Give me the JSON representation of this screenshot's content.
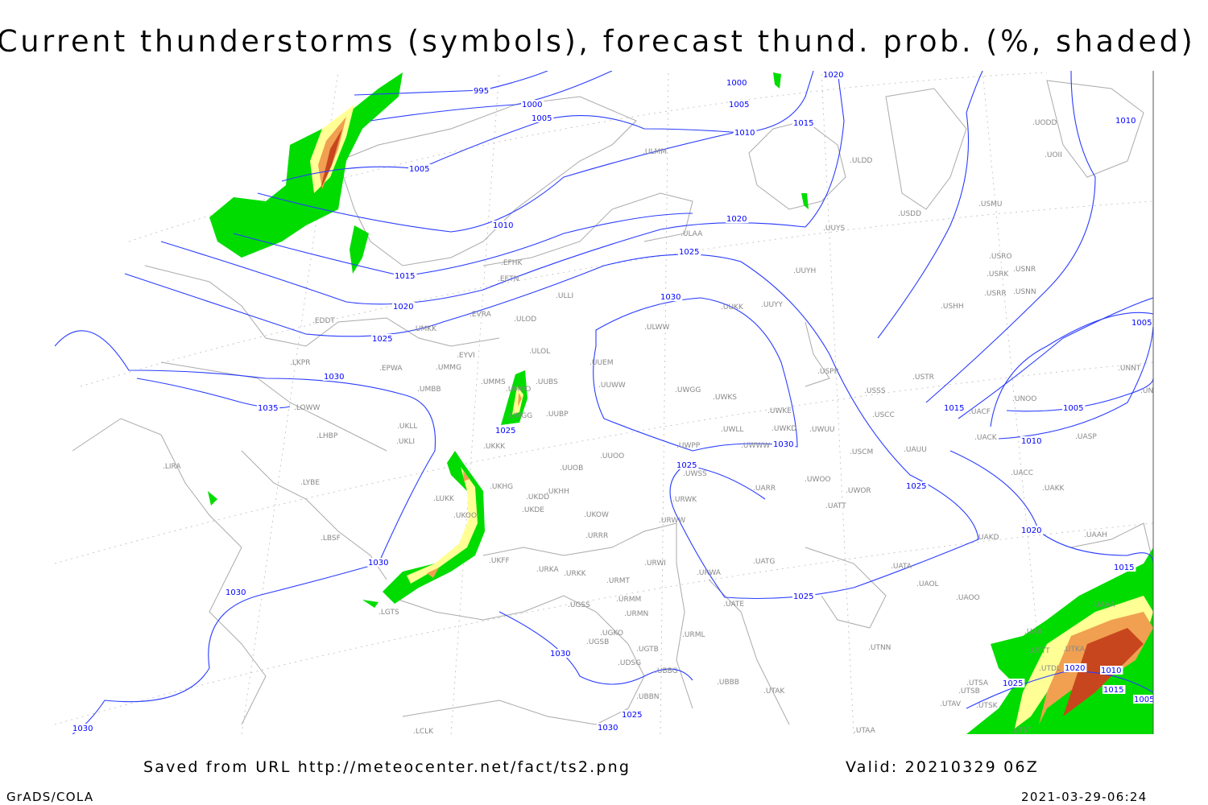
{
  "title": "Current thunderstorms (symbols), forecast thund. prob. (%, shaded)",
  "footer": {
    "source": "Saved from URL http://meteocenter.net/fact/ts2.png",
    "valid": "Valid: 20210329 06Z",
    "software": "GrADS/COLA",
    "timestamp": "2021-03-29-06:24"
  },
  "colors": {
    "isobar": "#2a3cff",
    "coast": "#aaaaaa",
    "prob_low": "#00dc00",
    "prob_mid": "#ffff96",
    "prob_high": "#f0a050",
    "prob_max": "#c8461e"
  },
  "isobar_labels": [
    "995",
    "1000",
    "1005",
    "1000",
    "1005",
    "1010",
    "1015",
    "1020",
    "1005",
    "1010",
    "1015",
    "1020",
    "1025",
    "1030",
    "1035",
    "1025",
    "1030",
    "1020",
    "1025",
    "1030",
    "1030",
    "1030",
    "1025",
    "1025",
    "1025",
    "1020",
    "1015",
    "1010",
    "1005",
    "1010",
    "1005",
    "1015",
    "1020",
    "1010",
    "1025",
    "1015",
    "1005",
    "1025",
    "1030",
    "1030",
    "1030"
  ],
  "stations": [
    "ULMM",
    "ULDD",
    "USDD",
    "USMU",
    "UUYS",
    "ULAA",
    "EFHK",
    "EETN",
    "ULLI",
    "UUYH",
    "USRO",
    "USRK",
    "USNR",
    "USRR",
    "USNN",
    "USHH",
    "UUKK",
    "UUYY",
    "EVRA",
    "ULOD",
    "EDDT",
    "UMKK",
    "ULWW",
    "ULOL",
    "EYVI",
    "UUEM",
    "LKPR",
    "EPWA",
    "UMMG",
    "USPP",
    "USTR",
    "UNNT",
    "UMMS",
    "UUBS",
    "UMOO",
    "UMBB",
    "UUWW",
    "UWGG",
    "UWKS",
    "USSS",
    "UNOO",
    "UNBB",
    "LOWW",
    "UKLL",
    "UMGG",
    "UUBP",
    "UWKE",
    "USCC",
    "UACF",
    "UWKD",
    "UWUU",
    "LHBP",
    "UKLI",
    "UWLL",
    "UASP",
    "UACK",
    "UWWW",
    "UKKK",
    "UWPP",
    "USCM",
    "UAUU",
    "LIRA",
    "UUOB",
    "UUOO",
    "UWSS",
    "UACC",
    "LYBE",
    "UKHG",
    "UARR",
    "UWOO",
    "UWOR",
    "UAKK",
    "LUKK",
    "UKDD",
    "UKHH",
    "UKOO",
    "UKDE",
    "UKOW",
    "URWK",
    "UATT",
    "URWW",
    "LBSF",
    "URRR",
    "UAKD",
    "UAAH",
    "UKFF",
    "URWI",
    "UATG",
    "UATA",
    "URKA",
    "URKK",
    "URMT",
    "URWA",
    "UAOL",
    "UAOO",
    "URMM",
    "UATE",
    "LGTS",
    "UGSS",
    "URMN",
    "UAII",
    "UGKO",
    "URML",
    "UGSB",
    "UTNN",
    "UGTB",
    "UDSG",
    "UBBG",
    "UBBB",
    "UTSA",
    "UTSB",
    "UTAK",
    "UBBN",
    "UTAV",
    "UTSK",
    "LCLK",
    "UTAA",
    "UTST",
    "UTTT",
    "UTKA",
    "UTDL",
    "UAAA",
    "UODD",
    "UOII"
  ]
}
